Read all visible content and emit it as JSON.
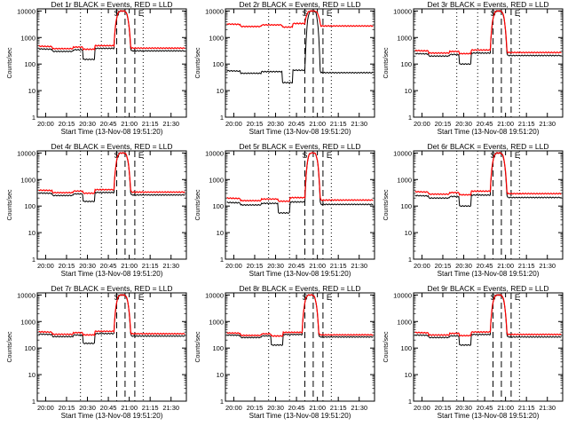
{
  "window": {
    "background": "#ffffff"
  },
  "chart_data": [
    {
      "type": "line",
      "title": "Det 1r BLACK = Events, RED = LLD",
      "xlabel": "Start Time (13-Nov-08 19:51:20)",
      "ylabel": "Counts/sec",
      "x_tick_labels": [
        "20:00",
        "20:15",
        "20:30",
        "20:45",
        "21:00",
        "21:15",
        "21:30"
      ],
      "y_tick_labels": [
        "1",
        "10",
        "100",
        "1000",
        "10000"
      ],
      "xlim_minutes": [
        -6,
        101
      ],
      "ylim": [
        1,
        12000
      ],
      "x_ticks_minutes": [
        0,
        15,
        30,
        45,
        60,
        75,
        90
      ],
      "black_level": 300,
      "red_level": 380,
      "dip_start": 27,
      "dip_end": 35,
      "dip_level": 150,
      "peak_start": 49,
      "peak_end": 61,
      "peak_level": 10000,
      "saa_markers": [
        51,
        57,
        64
      ],
      "dotted": [
        25,
        40,
        70
      ],
      "flare_markers": [
        "S",
        "E"
      ],
      "series": [
        {
          "name": "Events",
          "color": "#000000"
        },
        {
          "name": "LLD",
          "color": "#ff0000"
        }
      ]
    },
    {
      "type": "line",
      "title": "Det 2r BLACK = Events, RED = LLD",
      "xlabel": "Start Time (13-Nov-08 19:51:20)",
      "ylabel": "Counts/sec",
      "x_tick_labels": [
        "20:00",
        "20:15",
        "20:30",
        "20:45",
        "21:00",
        "21:15",
        "21:30"
      ],
      "y_tick_labels": [
        "1",
        "10",
        "100",
        "1000",
        "10000"
      ],
      "xlim_minutes": [
        -6,
        101
      ],
      "ylim": [
        1,
        12000
      ],
      "x_ticks_minutes": [
        0,
        15,
        30,
        45,
        60,
        75,
        90
      ],
      "black_level": 45,
      "red_level": 2600,
      "dip_start": 35,
      "dip_end": 42,
      "dip_level": 20,
      "peak_start": 51,
      "peak_end": 62,
      "peak_level": 10000,
      "saa_markers": [
        51,
        57,
        64
      ],
      "dotted": [
        25,
        40,
        70
      ],
      "flare_markers": [
        "S",
        "E"
      ],
      "series": [
        {
          "name": "Events",
          "color": "#000000"
        },
        {
          "name": "LLD",
          "color": "#ff0000"
        }
      ]
    },
    {
      "type": "line",
      "title": "Det 3r BLACK = Events, RED = LLD",
      "xlabel": "Start Time (13-Nov-08 19:51:20)",
      "ylabel": "Counts/sec",
      "x_tick_labels": [
        "20:00",
        "20:15",
        "20:30",
        "20:45",
        "21:00",
        "21:15",
        "21:30"
      ],
      "y_tick_labels": [
        "1",
        "10",
        "100",
        "1000",
        "10000"
      ],
      "xlim_minutes": [
        -6,
        101
      ],
      "ylim": [
        1,
        12000
      ],
      "x_ticks_minutes": [
        0,
        15,
        30,
        45,
        60,
        75,
        90
      ],
      "black_level": 200,
      "red_level": 260,
      "dip_start": 27,
      "dip_end": 35,
      "dip_level": 100,
      "peak_start": 49,
      "peak_end": 61,
      "peak_level": 10000,
      "saa_markers": [
        51,
        57,
        64
      ],
      "dotted": [
        25,
        40,
        70
      ],
      "flare_markers": [
        "S",
        "E"
      ],
      "series": [
        {
          "name": "Events",
          "color": "#000000"
        },
        {
          "name": "LLD",
          "color": "#ff0000"
        }
      ]
    },
    {
      "type": "line",
      "title": "Det 4r BLACK = Events, RED = LLD",
      "xlabel": "Start Time (13-Nov-08 19:51:20)",
      "ylabel": "Counts/sec",
      "x_tick_labels": [
        "20:00",
        "20:15",
        "20:30",
        "20:45",
        "21:00",
        "21:15",
        "21:30"
      ],
      "y_tick_labels": [
        "1",
        "10",
        "100",
        "1000",
        "10000"
      ],
      "xlim_minutes": [
        -6,
        101
      ],
      "ylim": [
        1,
        12000
      ],
      "x_ticks_minutes": [
        0,
        15,
        30,
        45,
        60,
        75,
        90
      ],
      "black_level": 250,
      "red_level": 320,
      "dip_start": 27,
      "dip_end": 35,
      "dip_level": 150,
      "peak_start": 49,
      "peak_end": 61,
      "peak_level": 10000,
      "saa_markers": [
        51,
        57,
        64
      ],
      "dotted": [
        25,
        40,
        70
      ],
      "flare_markers": [
        "S",
        "E"
      ],
      "series": [
        {
          "name": "Events",
          "color": "#000000"
        },
        {
          "name": "LLD",
          "color": "#ff0000"
        }
      ]
    },
    {
      "type": "line",
      "title": "Det 5r BLACK = Events, RED = LLD",
      "xlabel": "Start Time (13-Nov-08 19:51:20)",
      "ylabel": "Counts/sec",
      "x_tick_labels": [
        "20:00",
        "20:15",
        "20:30",
        "20:45",
        "21:00",
        "21:15",
        "21:30"
      ],
      "y_tick_labels": [
        "1",
        "10",
        "100",
        "1000",
        "10000"
      ],
      "xlim_minutes": [
        -6,
        101
      ],
      "ylim": [
        1,
        12000
      ],
      "x_ticks_minutes": [
        0,
        15,
        30,
        45,
        60,
        75,
        90
      ],
      "black_level": 110,
      "red_level": 160,
      "dip_start": 32,
      "dip_end": 40,
      "dip_level": 55,
      "peak_start": 51,
      "peak_end": 62,
      "peak_level": 10000,
      "saa_markers": [
        51,
        57,
        64
      ],
      "dotted": [
        25,
        40,
        70
      ],
      "flare_markers": [
        "S",
        "E"
      ],
      "series": [
        {
          "name": "Events",
          "color": "#000000"
        },
        {
          "name": "LLD",
          "color": "#ff0000"
        }
      ]
    },
    {
      "type": "line",
      "title": "Det 6r BLACK = Events, RED = LLD",
      "xlabel": "Start Time (13-Nov-08 19:51:20)",
      "ylabel": "Counts/sec",
      "x_tick_labels": [
        "20:00",
        "20:15",
        "20:30",
        "20:45",
        "21:00",
        "21:15",
        "21:30"
      ],
      "y_tick_labels": [
        "1",
        "10",
        "100",
        "1000",
        "10000"
      ],
      "xlim_minutes": [
        -6,
        101
      ],
      "ylim": [
        1,
        12000
      ],
      "x_ticks_minutes": [
        0,
        15,
        30,
        45,
        60,
        75,
        90
      ],
      "black_level": 200,
      "red_level": 280,
      "dip_start": 27,
      "dip_end": 35,
      "dip_level": 100,
      "peak_start": 49,
      "peak_end": 61,
      "peak_level": 10000,
      "saa_markers": [
        51,
        57,
        64
      ],
      "dotted": [
        25,
        40,
        70
      ],
      "flare_markers": [
        "S",
        "E"
      ],
      "series": [
        {
          "name": "Events",
          "color": "#000000"
        },
        {
          "name": "LLD",
          "color": "#ff0000"
        }
      ]
    },
    {
      "type": "line",
      "title": "Det 7r BLACK = Events, RED = LLD",
      "xlabel": "Start Time (13-Nov-08 19:51:20)",
      "ylabel": "Counts/sec",
      "x_tick_labels": [
        "20:00",
        "20:15",
        "20:30",
        "20:45",
        "21:00",
        "21:15",
        "21:30"
      ],
      "y_tick_labels": [
        "1",
        "10",
        "100",
        "1000",
        "10000"
      ],
      "xlim_minutes": [
        -6,
        101
      ],
      "ylim": [
        1,
        12000
      ],
      "x_ticks_minutes": [
        0,
        15,
        30,
        45,
        60,
        75,
        90
      ],
      "black_level": 270,
      "red_level": 330,
      "dip_start": 27,
      "dip_end": 35,
      "dip_level": 150,
      "peak_start": 49,
      "peak_end": 61,
      "peak_level": 10000,
      "saa_markers": [
        51,
        57,
        64
      ],
      "dotted": [
        25,
        40,
        70
      ],
      "flare_markers": [
        "S",
        "E"
      ],
      "series": [
        {
          "name": "Events",
          "color": "#000000"
        },
        {
          "name": "LLD",
          "color": "#ff0000"
        }
      ]
    },
    {
      "type": "line",
      "title": "Det 8r BLACK = Events, RED = LLD",
      "xlabel": "Start Time (13-Nov-08 19:51:20)",
      "ylabel": "Counts/sec",
      "x_tick_labels": [
        "20:00",
        "20:15",
        "20:30",
        "20:45",
        "21:00",
        "21:15",
        "21:30"
      ],
      "y_tick_labels": [
        "1",
        "10",
        "100",
        "1000",
        "10000"
      ],
      "xlim_minutes": [
        -6,
        101
      ],
      "ylim": [
        1,
        12000
      ],
      "x_ticks_minutes": [
        0,
        15,
        30,
        45,
        60,
        75,
        90
      ],
      "black_level": 250,
      "red_level": 300,
      "dip_start": 27,
      "dip_end": 35,
      "dip_level": 130,
      "peak_start": 49,
      "peak_end": 61,
      "peak_level": 10000,
      "saa_markers": [
        51,
        57,
        64
      ],
      "dotted": [
        25,
        40,
        70
      ],
      "flare_markers": [
        "S",
        "E"
      ],
      "series": [
        {
          "name": "Events",
          "color": "#000000"
        },
        {
          "name": "LLD",
          "color": "#ff0000"
        }
      ]
    },
    {
      "type": "line",
      "title": "Det 9r BLACK = Events, RED = LLD",
      "xlabel": "Start Time (13-Nov-08 19:51:20)",
      "ylabel": "Counts/sec",
      "x_tick_labels": [
        "20:00",
        "20:15",
        "20:30",
        "20:45",
        "21:00",
        "21:15",
        "21:30"
      ],
      "y_tick_labels": [
        "1",
        "10",
        "100",
        "1000",
        "10000"
      ],
      "xlim_minutes": [
        -6,
        101
      ],
      "ylim": [
        1,
        12000
      ],
      "x_ticks_minutes": [
        0,
        15,
        30,
        45,
        60,
        75,
        90
      ],
      "black_level": 250,
      "red_level": 310,
      "dip_start": 27,
      "dip_end": 35,
      "dip_level": 130,
      "peak_start": 49,
      "peak_end": 61,
      "peak_level": 10000,
      "saa_markers": [
        51,
        57,
        64
      ],
      "dotted": [
        25,
        40,
        70
      ],
      "flare_markers": [
        "S",
        "E"
      ],
      "series": [
        {
          "name": "Events",
          "color": "#000000"
        },
        {
          "name": "LLD",
          "color": "#ff0000"
        }
      ]
    }
  ]
}
